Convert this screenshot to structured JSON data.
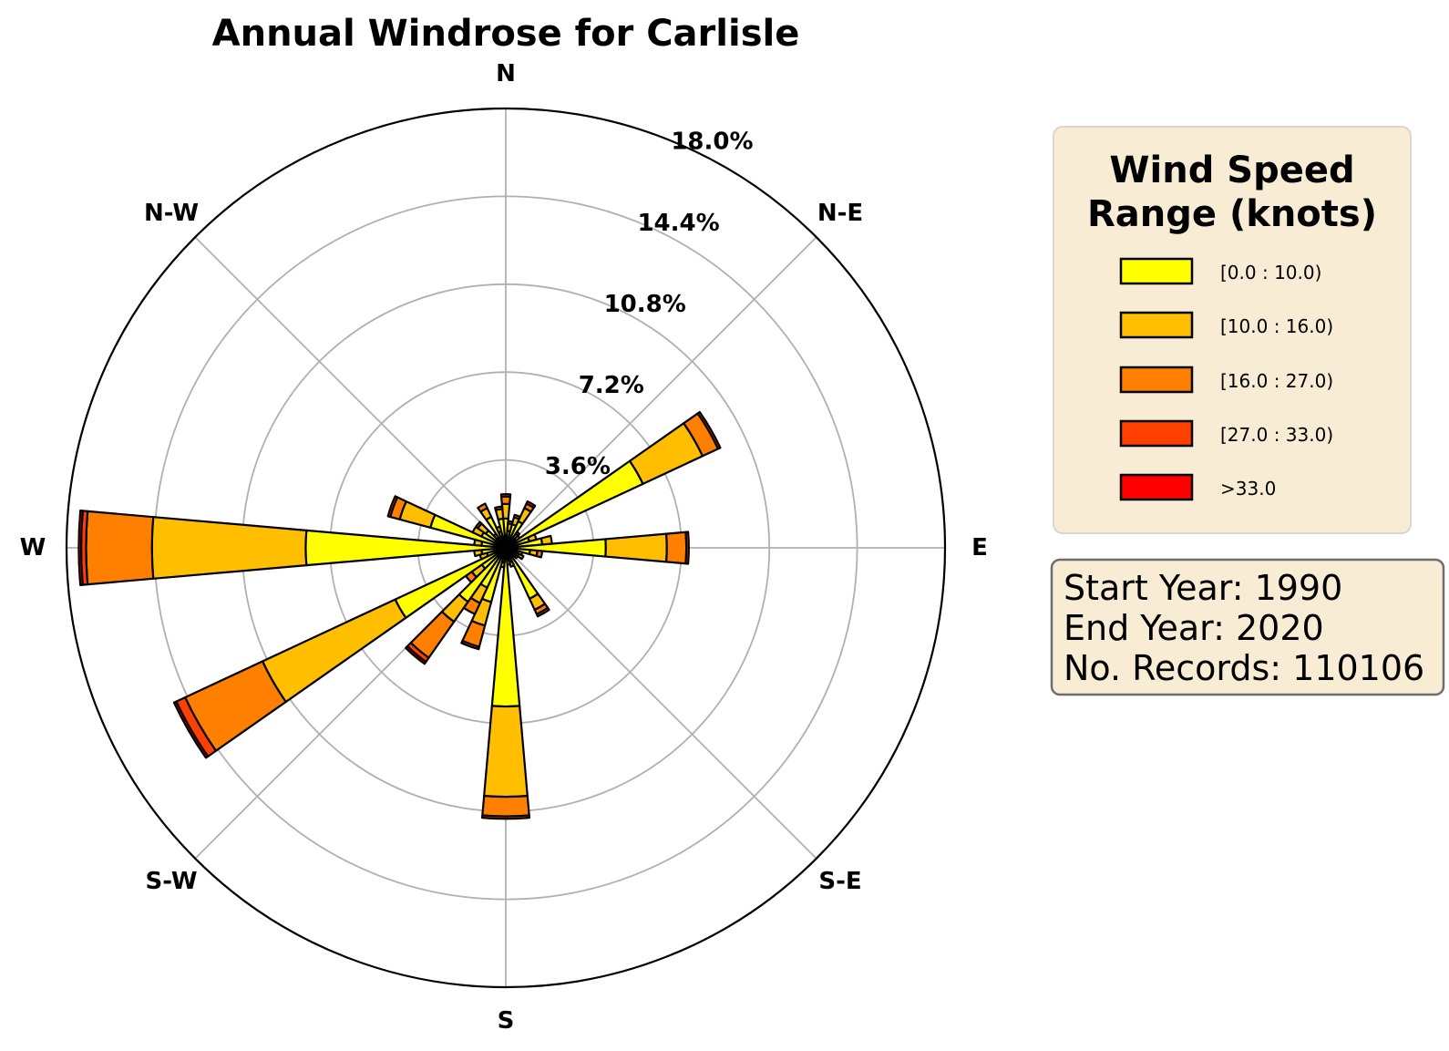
{
  "chart_data": {
    "type": "windrose",
    "title": "Annual Windrose for Carlisle",
    "directions_labels": [
      "N",
      "N-E",
      "E",
      "S-E",
      "S",
      "S-W",
      "W",
      "N-W"
    ],
    "radial_ticks": [
      "3.6%",
      "7.2%",
      "10.8%",
      "14.4%",
      "18.0%"
    ],
    "radial_tick_values": [
      3.6,
      7.2,
      10.8,
      14.4,
      18.0
    ],
    "rmax": 18.0,
    "speed_bins": [
      "[0.0 : 10.0)",
      "[10.0 : 16.0)",
      "[16.0 : 27.0)",
      "[27.0 : 33.0)",
      ">33.0"
    ],
    "bin_colors": [
      "#ffff00",
      "#ffbf00",
      "#ff8000",
      "#ff4000",
      "#ff0000"
    ],
    "sector_width_deg": 10,
    "sectors": [
      {
        "direction_deg": 0,
        "cumulative": [
          1.2,
          1.8,
          2.1,
          2.2
        ]
      },
      {
        "direction_deg": 10,
        "cumulative": [
          0.7,
          1.0,
          1.1
        ]
      },
      {
        "direction_deg": 20,
        "cumulative": [
          1.0,
          1.3,
          1.4
        ]
      },
      {
        "direction_deg": 30,
        "cumulative": [
          1.2,
          1.8,
          2.0,
          2.1
        ]
      },
      {
        "direction_deg": 40,
        "cumulative": [
          0.5,
          0.7,
          0.8
        ]
      },
      {
        "direction_deg": 50,
        "cumulative": [
          0.5,
          0.7
        ]
      },
      {
        "direction_deg": 60,
        "cumulative": [
          6.2,
          8.9,
          9.6,
          9.7
        ]
      },
      {
        "direction_deg": 70,
        "cumulative": [
          1.0,
          1.3
        ]
      },
      {
        "direction_deg": 80,
        "cumulative": [
          1.5,
          1.9
        ]
      },
      {
        "direction_deg": 90,
        "cumulative": [
          4.1,
          6.6,
          7.4,
          7.5
        ]
      },
      {
        "direction_deg": 100,
        "cumulative": [
          1.0,
          1.3,
          1.5
        ]
      },
      {
        "direction_deg": 110,
        "cumulative": [
          0.5,
          0.7
        ]
      },
      {
        "direction_deg": 120,
        "cumulative": [
          0.6,
          0.8
        ]
      },
      {
        "direction_deg": 130,
        "cumulative": [
          0.5,
          0.6
        ]
      },
      {
        "direction_deg": 140,
        "cumulative": [
          0.4,
          0.5
        ]
      },
      {
        "direction_deg": 150,
        "cumulative": [
          2.3,
          2.8,
          3.0,
          3.1
        ]
      },
      {
        "direction_deg": 160,
        "cumulative": [
          0.6,
          0.8
        ]
      },
      {
        "direction_deg": 170,
        "cumulative": [
          0.5,
          0.7
        ]
      },
      {
        "direction_deg": 180,
        "cumulative": [
          6.5,
          10.2,
          11.0,
          11.1
        ]
      },
      {
        "direction_deg": 190,
        "cumulative": [
          0.6,
          0.8
        ]
      },
      {
        "direction_deg": 200,
        "cumulative": [
          2.3,
          3.3,
          4.2,
          4.3
        ]
      },
      {
        "direction_deg": 210,
        "cumulative": [
          1.8,
          2.5,
          3.0
        ]
      },
      {
        "direction_deg": 220,
        "cumulative": [
          2.7,
          3.7,
          5.5,
          5.7,
          5.8
        ]
      },
      {
        "direction_deg": 230,
        "cumulative": [
          1.2,
          1.7,
          2.0
        ]
      },
      {
        "direction_deg": 240,
        "cumulative": [
          5.0,
          11.0,
          14.5,
          14.9,
          15.0
        ]
      },
      {
        "direction_deg": 250,
        "cumulative": [
          0.8,
          1.1
        ]
      },
      {
        "direction_deg": 260,
        "cumulative": [
          1.0,
          1.3
        ]
      },
      {
        "direction_deg": 270,
        "cumulative": [
          8.2,
          14.5,
          17.2,
          17.4,
          17.5
        ]
      },
      {
        "direction_deg": 280,
        "cumulative": [
          1.0,
          1.3
        ]
      },
      {
        "direction_deg": 290,
        "cumulative": [
          3.2,
          4.5,
          4.9,
          5.0
        ]
      },
      {
        "direction_deg": 300,
        "cumulative": [
          1.1,
          1.5
        ]
      },
      {
        "direction_deg": 310,
        "cumulative": [
          1.0,
          1.4,
          1.5
        ]
      },
      {
        "direction_deg": 320,
        "cumulative": [
          0.5,
          0.7
        ]
      },
      {
        "direction_deg": 330,
        "cumulative": [
          1.4,
          1.8,
          2.0
        ]
      },
      {
        "direction_deg": 340,
        "cumulative": [
          0.7,
          0.9
        ]
      },
      {
        "direction_deg": 350,
        "cumulative": [
          1.2,
          1.6,
          1.7
        ]
      }
    ]
  },
  "legend": {
    "title_line1": "Wind Speed",
    "title_line2": "Range (knots)",
    "items": [
      "[0.0 : 10.0)",
      "[10.0 : 16.0)",
      "[16.0 : 27.0)",
      "[27.0 : 33.0)",
      ">33.0"
    ]
  },
  "info": {
    "start_year": "Start Year: 1990",
    "end_year": "End Year: 2020",
    "records": "No. Records: 110106"
  }
}
